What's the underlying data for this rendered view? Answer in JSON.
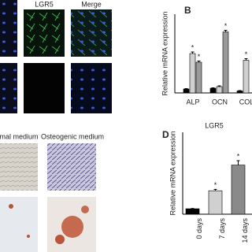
{
  "panel_a": {
    "labels": [
      "LGR5",
      "Merge"
    ]
  },
  "panel_c": {
    "labels": [
      "mal medium",
      "Osteogenic medium"
    ]
  },
  "chart_data": [
    {
      "type": "bar",
      "panel": "B",
      "ylabel": "Relative mRNA expression",
      "categories": [
        "ALP",
        "OCN",
        "COL"
      ],
      "ylim": [
        0,
        20
      ],
      "series": [
        {
          "color": "#000000",
          "values": [
            1,
            1.2,
            0.5
          ],
          "errors": [
            0.1,
            0.1,
            0.1
          ],
          "stars": [
            null,
            null,
            null
          ]
        },
        {
          "color": "#d0d0d0",
          "values": [
            10,
            1.6,
            8.3
          ],
          "errors": [
            0.4,
            0.2,
            0.4
          ],
          "stars": [
            "*",
            null,
            "*"
          ]
        },
        {
          "color": "#9a9a9a",
          "values": [
            7.8,
            15.5,
            null
          ],
          "errors": [
            0.3,
            0.4,
            null
          ],
          "stars": [
            "*",
            "*",
            null
          ]
        }
      ]
    },
    {
      "type": "bar",
      "panel": "D",
      "title": "LGR5",
      "ylabel": "Relative mRNA expression",
      "categories": [
        "0 days",
        "7 days",
        "14 days"
      ],
      "ylim": [
        0,
        15
      ],
      "series": [
        {
          "colors": [
            "#000000",
            "#d0d0d0",
            "#8a8a8a"
          ],
          "values": [
            1,
            4.3,
            9
          ],
          "errors": [
            0.05,
            0.25,
            0.8
          ],
          "stars": [
            null,
            "*",
            "*"
          ]
        }
      ]
    }
  ]
}
